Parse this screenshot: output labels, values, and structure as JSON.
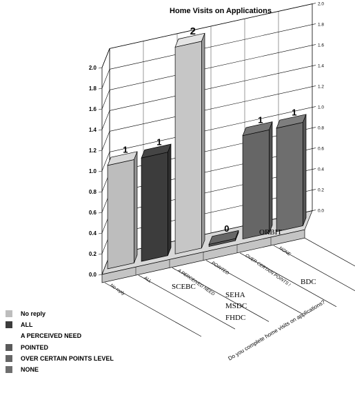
{
  "chart_data": {
    "type": "bar",
    "title": "Home Visits on Applications",
    "categories": [
      "No reply",
      "ALL",
      "A PERCEIVED NEED",
      "POINTED",
      "OVER CERTAIN POINTS LEVEL",
      "NONE"
    ],
    "category_tick_labels": [
      "No reply",
      "ALL",
      "A PERCEIVED NEED",
      "POINTED",
      "OVER CERTAIN POINTS !",
      "NONE"
    ],
    "values": [
      1,
      1,
      2,
      0,
      1,
      1
    ],
    "data_labels": [
      "1",
      "1",
      "2",
      "0",
      "1",
      "1"
    ],
    "colors": [
      "#bdbdbd",
      "#3c3c3c",
      "#c6c6c6",
      "#5a5a5a",
      "#666666",
      "#6e6e6e"
    ],
    "ylim": [
      0,
      2
    ],
    "left_axis_ticks": [
      "0.0",
      "0.2",
      "0.4",
      "0.6",
      "0.8",
      "1.0",
      "1.2",
      "1.4",
      "1.6",
      "1.8",
      "2.0"
    ],
    "right_axis_ticks": [
      "0.0",
      "0.2",
      "0.4",
      "0.6",
      "0.8",
      "1.0",
      "1.2",
      "1.4",
      "1.6",
      "1.8",
      "2.0"
    ],
    "axis_title": "Do you complete home visits on applications?",
    "grid": true,
    "legend_position": "bottom-left"
  },
  "floating_labels": [
    "ORBIT",
    "SCEBC",
    "BDC",
    "SEHA",
    "MSDC",
    "FHDC"
  ]
}
